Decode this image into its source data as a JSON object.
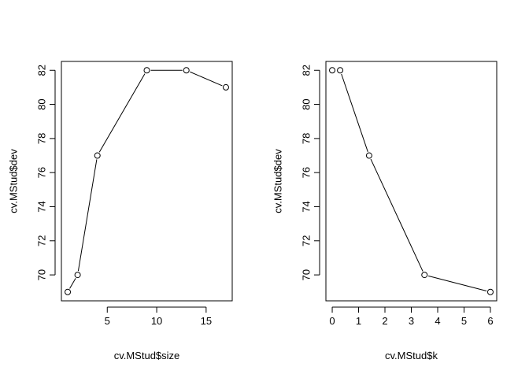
{
  "chart_data": [
    {
      "type": "line",
      "panel": "left",
      "xlabel": "cv.MStud$size",
      "ylabel": "cv.MStud$dev",
      "x": [
        1,
        2,
        4,
        9,
        13,
        17
      ],
      "y": [
        69,
        70,
        77,
        82,
        82,
        81
      ],
      "xlim": [
        0.36,
        17.64
      ],
      "ylim": [
        68.48,
        82.52
      ],
      "xticks": [
        5,
        10,
        15
      ],
      "yticks": [
        70,
        72,
        74,
        76,
        78,
        80,
        82
      ],
      "marker": "open-circle",
      "connected": true,
      "grid": false
    },
    {
      "type": "line",
      "panel": "right",
      "xlabel": "cv.MStud$k",
      "ylabel": "cv.MStud$dev",
      "x": [
        0,
        0.3,
        1.4,
        3.5,
        6
      ],
      "y": [
        82,
        82,
        77,
        70,
        69
      ],
      "xlim": [
        -0.24,
        6.24
      ],
      "ylim": [
        68.48,
        82.52
      ],
      "xticks": [
        0,
        1,
        2,
        3,
        4,
        5,
        6
      ],
      "yticks": [
        70,
        72,
        74,
        76,
        78,
        80,
        82
      ],
      "marker": "open-circle",
      "connected": true,
      "grid": false
    }
  ]
}
